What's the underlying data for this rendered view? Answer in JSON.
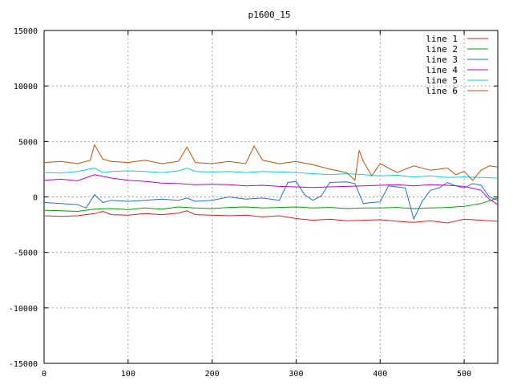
{
  "chart_data": {
    "type": "line",
    "title": "p1600_15",
    "xlabel": "",
    "ylabel": "",
    "xlim": [
      0,
      540
    ],
    "ylim": [
      -15000,
      15000
    ],
    "x_ticks": [
      0,
      100,
      200,
      300,
      400,
      500
    ],
    "y_ticks": [
      -15000,
      -10000,
      -5000,
      0,
      5000,
      10000,
      15000
    ],
    "grid": true,
    "legend_position": "top-right",
    "series": [
      {
        "name": "line 1",
        "color": "#e41a1c",
        "points": [
          [
            0,
            -1700
          ],
          [
            20,
            -1750
          ],
          [
            40,
            -1700
          ],
          [
            60,
            -1500
          ],
          [
            70,
            -1300
          ],
          [
            80,
            -1600
          ],
          [
            100,
            -1650
          ],
          [
            120,
            -1500
          ],
          [
            140,
            -1600
          ],
          [
            160,
            -1450
          ],
          [
            170,
            -1250
          ],
          [
            180,
            -1600
          ],
          [
            200,
            -1650
          ],
          [
            220,
            -1700
          ],
          [
            240,
            -1650
          ],
          [
            260,
            -1800
          ],
          [
            280,
            -1700
          ],
          [
            300,
            -1950
          ],
          [
            320,
            -2100
          ],
          [
            340,
            -2000
          ],
          [
            360,
            -2150
          ],
          [
            380,
            -2100
          ],
          [
            400,
            -2050
          ],
          [
            420,
            -2200
          ],
          [
            440,
            -2300
          ],
          [
            460,
            -2150
          ],
          [
            480,
            -2350
          ],
          [
            500,
            -2000
          ],
          [
            520,
            -2100
          ],
          [
            540,
            -2200
          ]
        ]
      },
      {
        "name": "line 2",
        "color": "#00a000",
        "points": [
          [
            0,
            -1200
          ],
          [
            20,
            -1250
          ],
          [
            40,
            -1300
          ],
          [
            60,
            -1100
          ],
          [
            80,
            -1050
          ],
          [
            100,
            -1150
          ],
          [
            120,
            -1000
          ],
          [
            140,
            -1100
          ],
          [
            160,
            -900
          ],
          [
            180,
            -1000
          ],
          [
            200,
            -1050
          ],
          [
            220,
            -950
          ],
          [
            240,
            -900
          ],
          [
            260,
            -1000
          ],
          [
            280,
            -950
          ],
          [
            300,
            -900
          ],
          [
            320,
            -1000
          ],
          [
            340,
            -950
          ],
          [
            360,
            -1050
          ],
          [
            380,
            -1000
          ],
          [
            400,
            -1000
          ],
          [
            420,
            -950
          ],
          [
            440,
            -1050
          ],
          [
            460,
            -1000
          ],
          [
            480,
            -950
          ],
          [
            500,
            -850
          ],
          [
            520,
            -600
          ],
          [
            540,
            -100
          ]
        ]
      },
      {
        "name": "line 3",
        "color": "#1e6fd9",
        "points": [
          [
            0,
            -500
          ],
          [
            20,
            -600
          ],
          [
            40,
            -700
          ],
          [
            50,
            -1000
          ],
          [
            60,
            200
          ],
          [
            70,
            -500
          ],
          [
            80,
            -300
          ],
          [
            100,
            -400
          ],
          [
            120,
            -300
          ],
          [
            140,
            -200
          ],
          [
            160,
            -300
          ],
          [
            170,
            -100
          ],
          [
            180,
            -400
          ],
          [
            200,
            -300
          ],
          [
            220,
            0
          ],
          [
            240,
            -200
          ],
          [
            260,
            -100
          ],
          [
            280,
            -300
          ],
          [
            290,
            1300
          ],
          [
            300,
            1400
          ],
          [
            310,
            200
          ],
          [
            320,
            -300
          ],
          [
            330,
            100
          ],
          [
            340,
            1300
          ],
          [
            360,
            1350
          ],
          [
            370,
            1200
          ],
          [
            380,
            -600
          ],
          [
            390,
            -500
          ],
          [
            400,
            -450
          ],
          [
            410,
            1000
          ],
          [
            420,
            900
          ],
          [
            430,
            800
          ],
          [
            440,
            -2000
          ],
          [
            450,
            -400
          ],
          [
            460,
            600
          ],
          [
            470,
            800
          ],
          [
            480,
            1300
          ],
          [
            490,
            1000
          ],
          [
            500,
            800
          ],
          [
            510,
            1200
          ],
          [
            520,
            1050
          ],
          [
            530,
            0
          ],
          [
            540,
            -300
          ]
        ]
      },
      {
        "name": "line 4",
        "color": "#c000c0",
        "points": [
          [
            0,
            1500
          ],
          [
            20,
            1600
          ],
          [
            40,
            1450
          ],
          [
            60,
            2000
          ],
          [
            80,
            1700
          ],
          [
            100,
            1500
          ],
          [
            120,
            1400
          ],
          [
            140,
            1250
          ],
          [
            160,
            1200
          ],
          [
            180,
            1100
          ],
          [
            200,
            1150
          ],
          [
            220,
            1100
          ],
          [
            240,
            1000
          ],
          [
            260,
            1050
          ],
          [
            280,
            950
          ],
          [
            300,
            900
          ],
          [
            320,
            850
          ],
          [
            340,
            900
          ],
          [
            360,
            950
          ],
          [
            380,
            1000
          ],
          [
            400,
            1050
          ],
          [
            420,
            1100
          ],
          [
            440,
            1000
          ],
          [
            460,
            1100
          ],
          [
            480,
            1050
          ],
          [
            500,
            950
          ],
          [
            520,
            600
          ],
          [
            530,
            -200
          ],
          [
            540,
            -700
          ]
        ]
      },
      {
        "name": "line 5",
        "color": "#00d8d8",
        "points": [
          [
            0,
            2200
          ],
          [
            20,
            2150
          ],
          [
            40,
            2300
          ],
          [
            60,
            2600
          ],
          [
            70,
            2200
          ],
          [
            80,
            2300
          ],
          [
            100,
            2350
          ],
          [
            120,
            2300
          ],
          [
            140,
            2200
          ],
          [
            160,
            2350
          ],
          [
            170,
            2600
          ],
          [
            180,
            2300
          ],
          [
            200,
            2250
          ],
          [
            220,
            2300
          ],
          [
            240,
            2200
          ],
          [
            260,
            2300
          ],
          [
            280,
            2250
          ],
          [
            300,
            2200
          ],
          [
            320,
            2100
          ],
          [
            340,
            2000
          ],
          [
            360,
            2100
          ],
          [
            380,
            2000
          ],
          [
            400,
            1900
          ],
          [
            420,
            1950
          ],
          [
            440,
            1800
          ],
          [
            460,
            1900
          ],
          [
            480,
            1750
          ],
          [
            500,
            1800
          ],
          [
            520,
            1750
          ],
          [
            540,
            1700
          ]
        ]
      },
      {
        "name": "line 6",
        "color": "#c05000",
        "points": [
          [
            0,
            3100
          ],
          [
            20,
            3200
          ],
          [
            40,
            3000
          ],
          [
            55,
            3300
          ],
          [
            60,
            4700
          ],
          [
            70,
            3400
          ],
          [
            80,
            3200
          ],
          [
            100,
            3100
          ],
          [
            120,
            3300
          ],
          [
            140,
            3000
          ],
          [
            160,
            3200
          ],
          [
            170,
            4500
          ],
          [
            180,
            3100
          ],
          [
            200,
            3000
          ],
          [
            220,
            3200
          ],
          [
            240,
            3000
          ],
          [
            250,
            4600
          ],
          [
            260,
            3300
          ],
          [
            280,
            3000
          ],
          [
            300,
            3200
          ],
          [
            320,
            2900
          ],
          [
            340,
            2500
          ],
          [
            360,
            2200
          ],
          [
            370,
            1500
          ],
          [
            375,
            4200
          ],
          [
            380,
            3200
          ],
          [
            390,
            1900
          ],
          [
            400,
            3000
          ],
          [
            420,
            2200
          ],
          [
            440,
            2800
          ],
          [
            460,
            2400
          ],
          [
            480,
            2600
          ],
          [
            490,
            2000
          ],
          [
            500,
            2300
          ],
          [
            510,
            1500
          ],
          [
            520,
            2400
          ],
          [
            530,
            2800
          ],
          [
            540,
            2700
          ]
        ]
      }
    ]
  }
}
